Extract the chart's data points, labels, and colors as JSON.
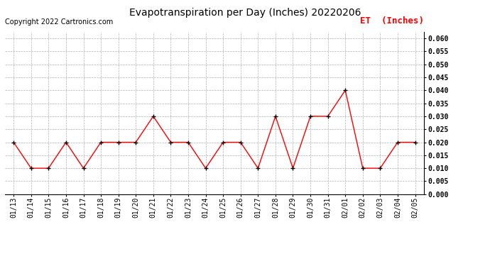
{
  "title": "Evapotranspiration per Day (Inches) 20220206",
  "copyright": "Copyright 2022 Cartronics.com",
  "legend_label": "ET  (Inches)",
  "dates": [
    "01/13",
    "01/14",
    "01/15",
    "01/16",
    "01/17",
    "01/18",
    "01/19",
    "01/20",
    "01/21",
    "01/22",
    "01/23",
    "01/24",
    "01/25",
    "01/26",
    "01/27",
    "01/28",
    "01/29",
    "01/30",
    "01/31",
    "02/01",
    "02/02",
    "02/03",
    "02/04",
    "02/05"
  ],
  "values": [
    0.02,
    0.01,
    0.01,
    0.02,
    0.01,
    0.02,
    0.02,
    0.02,
    0.03,
    0.02,
    0.02,
    0.01,
    0.02,
    0.02,
    0.01,
    0.03,
    0.01,
    0.03,
    0.03,
    0.04,
    0.01,
    0.01,
    0.02,
    0.02
  ],
  "line_color": "red",
  "marker_color": "black",
  "ylim": [
    0.0,
    0.0625
  ],
  "yticks": [
    0.0,
    0.005,
    0.01,
    0.015,
    0.02,
    0.025,
    0.03,
    0.035,
    0.04,
    0.045,
    0.05,
    0.055,
    0.06
  ],
  "background_color": "#ffffff",
  "grid_color": "#b0b0b0",
  "title_fontsize": 10,
  "copyright_fontsize": 7,
  "legend_fontsize": 9,
  "tick_fontsize": 7,
  "legend_color": "red"
}
